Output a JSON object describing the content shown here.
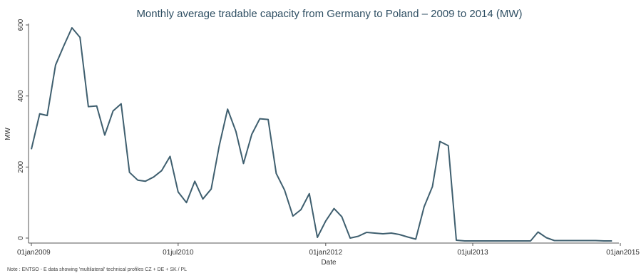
{
  "chart_data": {
    "type": "line",
    "title": "Monthly average tradable capacity from Germany to Poland – 2009 to 2014 (MW)",
    "xlabel": "Date",
    "ylabel": "MW",
    "note": "Note : ENTSO - E data showing 'multilateral' technical profiles CZ + DE + SK / PL",
    "x_range": [
      "2009-01-01",
      "2015-01-01"
    ],
    "ylim": [
      0,
      600
    ],
    "yticks": [
      0,
      200,
      400,
      600
    ],
    "xticks": [
      {
        "date": "2009-01-01",
        "label": "01jan2009"
      },
      {
        "date": "2010-07-01",
        "label": "01jul2010"
      },
      {
        "date": "2012-01-01",
        "label": "01jan2012"
      },
      {
        "date": "2013-07-01",
        "label": "01jul2013"
      },
      {
        "date": "2015-01-01",
        "label": "01jan2015"
      }
    ],
    "grid": false,
    "color": "#3f5f6f",
    "series": [
      {
        "name": "",
        "points": [
          [
            "2009-01",
            250
          ],
          [
            "2009-02",
            350
          ],
          [
            "2009-03",
            345
          ],
          [
            "2009-04",
            487
          ],
          [
            "2009-05",
            540
          ],
          [
            "2009-06",
            592
          ],
          [
            "2009-07",
            565
          ],
          [
            "2009-08",
            370
          ],
          [
            "2009-09",
            372
          ],
          [
            "2009-10",
            290
          ],
          [
            "2009-11",
            358
          ],
          [
            "2009-12",
            378
          ],
          [
            "2010-01",
            185
          ],
          [
            "2010-02",
            163
          ],
          [
            "2010-03",
            160
          ],
          [
            "2010-04",
            172
          ],
          [
            "2010-05",
            190
          ],
          [
            "2010-06",
            230
          ],
          [
            "2010-07",
            130
          ],
          [
            "2010-08",
            100
          ],
          [
            "2010-09",
            160
          ],
          [
            "2010-10",
            110
          ],
          [
            "2010-11",
            138
          ],
          [
            "2010-12",
            260
          ],
          [
            "2011-01",
            363
          ],
          [
            "2011-02",
            300
          ],
          [
            "2011-03",
            210
          ],
          [
            "2011-04",
            292
          ],
          [
            "2011-05",
            336
          ],
          [
            "2011-06",
            334
          ],
          [
            "2011-07",
            182
          ],
          [
            "2011-08",
            135
          ],
          [
            "2011-09",
            62
          ],
          [
            "2011-10",
            80
          ],
          [
            "2011-11",
            125
          ],
          [
            "2011-12",
            2
          ],
          [
            "2012-01",
            48
          ],
          [
            "2012-02",
            83
          ],
          [
            "2012-03",
            60
          ],
          [
            "2012-04",
            0
          ],
          [
            "2012-05",
            5
          ],
          [
            "2012-06",
            16
          ],
          [
            "2012-07",
            14
          ],
          [
            "2012-08",
            12
          ],
          [
            "2012-09",
            14
          ],
          [
            "2012-10",
            10
          ],
          [
            "2012-11",
            3
          ],
          [
            "2012-12",
            -3
          ],
          [
            "2013-01",
            88
          ],
          [
            "2013-02",
            145
          ],
          [
            "2013-03",
            272
          ],
          [
            "2013-04",
            260
          ],
          [
            "2013-05",
            -6
          ],
          [
            "2013-06",
            -8
          ],
          [
            "2013-07",
            -8
          ],
          [
            "2013-08",
            -8
          ],
          [
            "2013-09",
            -8
          ],
          [
            "2013-10",
            -8
          ],
          [
            "2013-11",
            -8
          ],
          [
            "2013-12",
            -8
          ],
          [
            "2014-01",
            -8
          ],
          [
            "2014-02",
            -8
          ],
          [
            "2014-03",
            17
          ],
          [
            "2014-04",
            1
          ],
          [
            "2014-05",
            -7
          ],
          [
            "2014-06",
            -7
          ],
          [
            "2014-07",
            -7
          ],
          [
            "2014-08",
            -7
          ],
          [
            "2014-09",
            -7
          ],
          [
            "2014-10",
            -7
          ],
          [
            "2014-11",
            -8
          ],
          [
            "2014-12",
            -8
          ]
        ]
      }
    ]
  }
}
